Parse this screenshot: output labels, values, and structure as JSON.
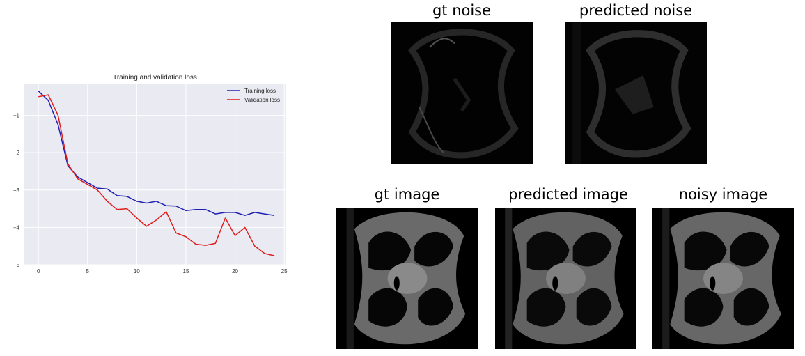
{
  "chart_data": {
    "type": "line",
    "title": "Training and validation loss",
    "xlabel": "",
    "ylabel": "",
    "xlim": [
      -1.5,
      25.2
    ],
    "ylim": [
      -5.0,
      -0.15
    ],
    "xticks": [
      0,
      5,
      10,
      15,
      20,
      25
    ],
    "yticks": [
      -1,
      -2,
      -3,
      -4,
      -5
    ],
    "grid": true,
    "legend_position": "top-right",
    "series": [
      {
        "name": "Training loss",
        "color": "#1f1fb4",
        "x": [
          0,
          1,
          2,
          3,
          4,
          5,
          6,
          7,
          8,
          9,
          10,
          11,
          12,
          13,
          14,
          15,
          16,
          17,
          18,
          19,
          20,
          21,
          22,
          23,
          24
        ],
        "y": [
          -0.35,
          -0.6,
          -1.25,
          -2.35,
          -2.65,
          -2.8,
          -2.95,
          -2.97,
          -3.15,
          -3.17,
          -3.3,
          -3.35,
          -3.3,
          -3.42,
          -3.43,
          -3.55,
          -3.52,
          -3.52,
          -3.64,
          -3.6,
          -3.6,
          -3.68,
          -3.6,
          -3.64,
          -3.68
        ]
      },
      {
        "name": "Validation loss",
        "color": "#e01b1b",
        "x": [
          0,
          1,
          2,
          3,
          4,
          5,
          6,
          7,
          8,
          9,
          10,
          11,
          12,
          13,
          14,
          15,
          16,
          17,
          18,
          19,
          20,
          21,
          22,
          23,
          24
        ],
        "y": [
          -0.5,
          -0.45,
          -1.0,
          -2.3,
          -2.7,
          -2.85,
          -3.0,
          -3.3,
          -3.52,
          -3.5,
          -3.75,
          -3.97,
          -3.8,
          -3.58,
          -4.15,
          -4.25,
          -4.45,
          -4.48,
          -4.43,
          -3.75,
          -4.22,
          -4.0,
          -4.5,
          -4.7,
          -4.76
        ]
      }
    ]
  },
  "panels": {
    "gt_noise": "gt noise",
    "predicted_noise": "predicted noise",
    "gt_image": "gt image",
    "predicted_image": "predicted image",
    "noisy_image": "noisy image"
  }
}
